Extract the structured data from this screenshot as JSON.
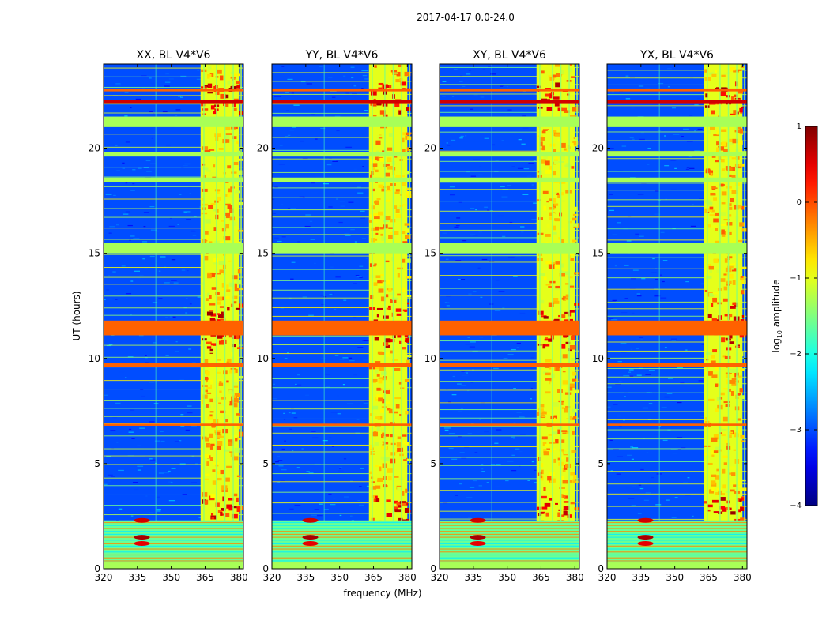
{
  "chart_data": {
    "type": "heatmap",
    "suptitle": "2017-04-17 0.0-24.0",
    "panels": [
      {
        "title": "XX, BL V4*V6"
      },
      {
        "title": "YY, BL V4*V6"
      },
      {
        "title": "XY, BL V4*V6"
      },
      {
        "title": "YX, BL V4*V6"
      }
    ],
    "xlabel": "frequency (MHz)",
    "ylabel": "UT (hours)",
    "xlim": [
      320,
      382
    ],
    "ylim": [
      0,
      24
    ],
    "xticks": [
      320,
      335,
      350,
      365,
      380
    ],
    "yticks": [
      0,
      5,
      10,
      15,
      20
    ],
    "colorbar": {
      "label": "log",
      "label_sub": "10",
      "label_rest": " amplitude",
      "range": [
        -4,
        1
      ],
      "ticks": [
        {
          "value": 1,
          "label": "1"
        },
        {
          "value": 0,
          "label": "0"
        },
        {
          "value": -1,
          "label": "−1"
        },
        {
          "value": -2,
          "label": "−2"
        },
        {
          "value": -3,
          "label": "−3"
        },
        {
          "value": -4,
          "label": "−4"
        }
      ]
    },
    "background_level": -3.0,
    "flagged_level": -1.3,
    "rfi_band_mhz": [
      363,
      380
    ],
    "flagged_time_bands_hours": [
      [
        21.0,
        21.5
      ],
      [
        15.0,
        15.5
      ],
      [
        0.0,
        0.3
      ],
      [
        18.4,
        18.6
      ],
      [
        19.6,
        19.8
      ]
    ],
    "strong_time_bands_hours": [
      [
        11.1,
        11.8
      ],
      [
        9.6,
        9.8
      ],
      [
        6.8,
        6.9
      ],
      [
        22.1,
        22.3
      ],
      [
        22.7,
        22.8
      ]
    ]
  }
}
